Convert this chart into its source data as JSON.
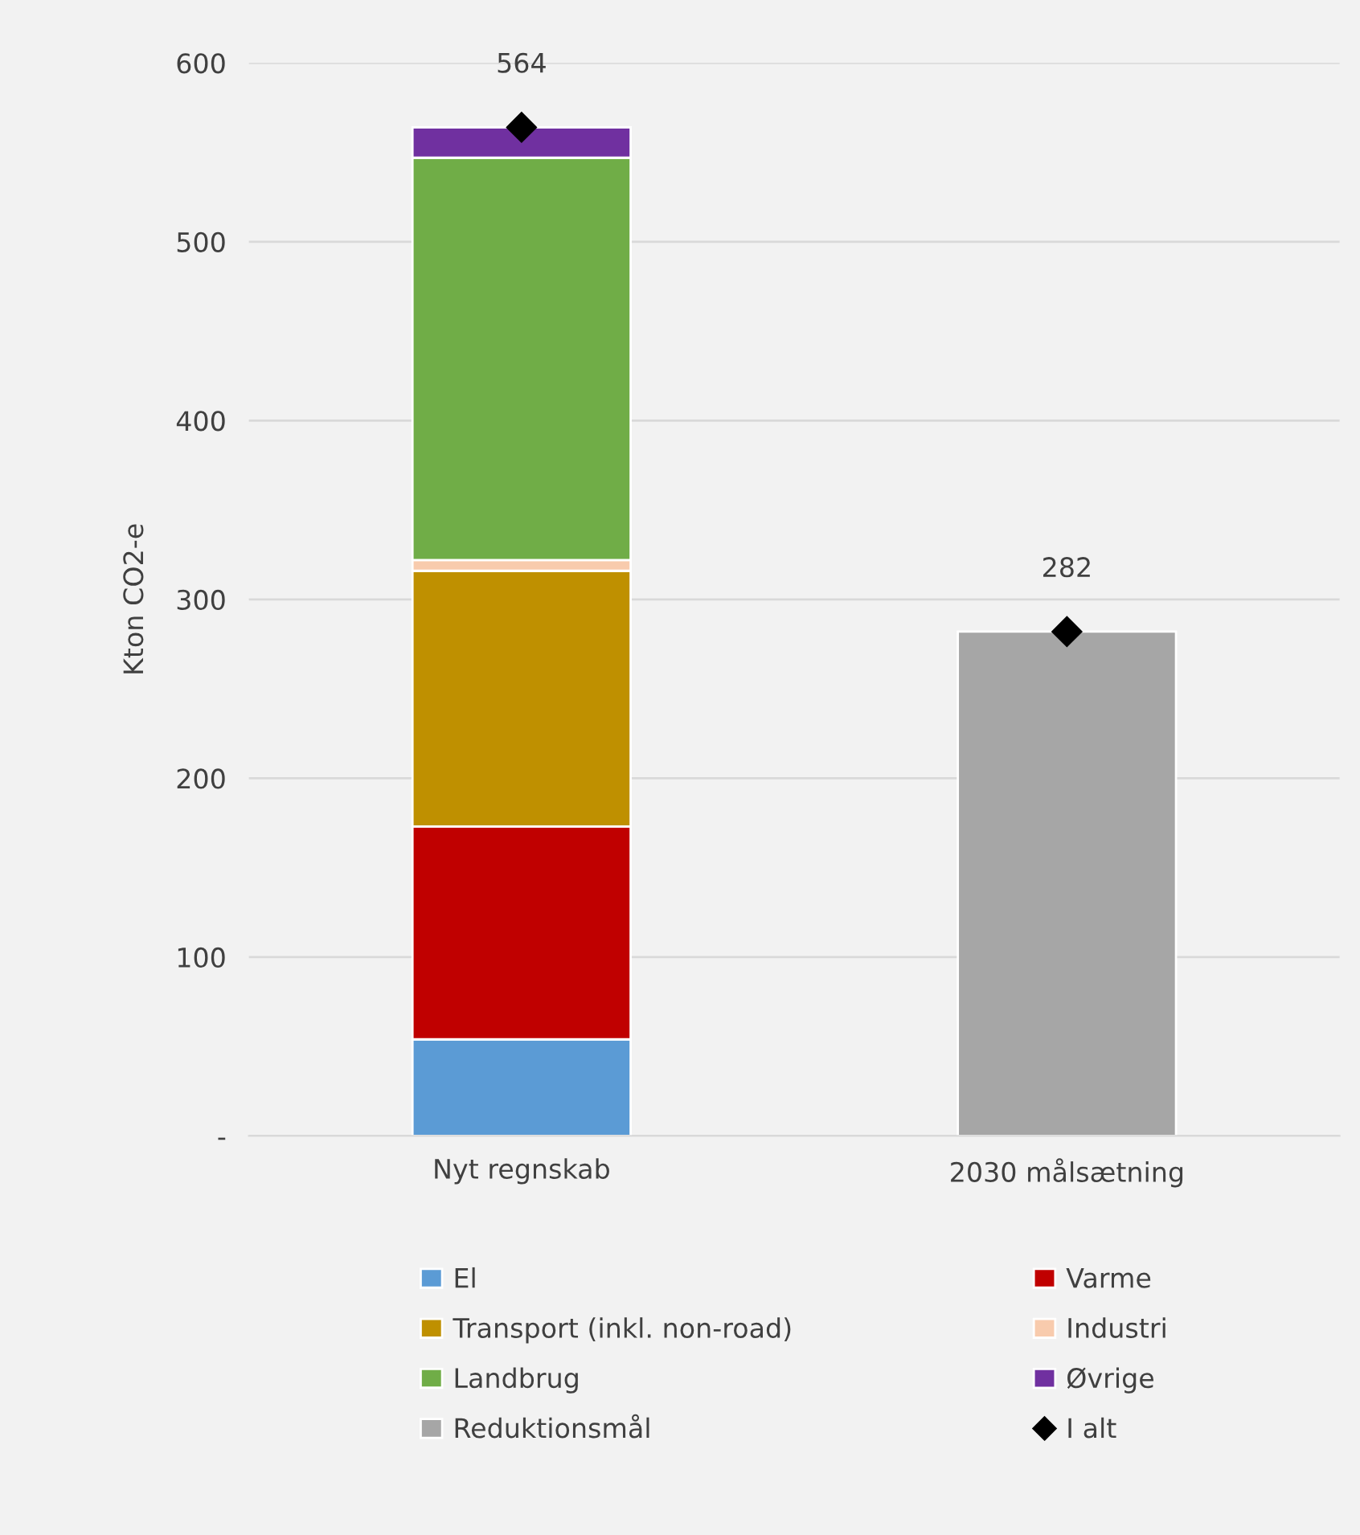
{
  "chart_data": {
    "type": "bar",
    "stacked": true,
    "ylabel": "Kton CO2-e",
    "categories": [
      "Nyt regnskab",
      "2030 målsætning"
    ],
    "series": [
      {
        "name": "El",
        "color": "#5b9bd5",
        "values": [
          54,
          null
        ]
      },
      {
        "name": "Varme",
        "color": "#c00000",
        "values": [
          119,
          null
        ]
      },
      {
        "name": "Transport (inkl. non-road)",
        "color": "#bf9000",
        "values": [
          143,
          null
        ]
      },
      {
        "name": "Industri",
        "color": "#f8cbad",
        "values": [
          6,
          null
        ]
      },
      {
        "name": "Landbrug",
        "color": "#70ad47",
        "values": [
          225,
          null
        ]
      },
      {
        "name": "Øvrige",
        "color": "#7030a0",
        "values": [
          17,
          null
        ]
      },
      {
        "name": "Reduktionsmål",
        "color": "#a6a6a6",
        "values": [
          null,
          282
        ]
      },
      {
        "name": "I alt",
        "type": "scatter",
        "marker": "diamond",
        "color": "#000000",
        "values": [
          564,
          282
        ],
        "value_labels": [
          "564",
          "282"
        ]
      }
    ],
    "ylim": [
      0,
      600
    ],
    "yticks": [
      {
        "value": 0,
        "label": "-"
      },
      100,
      200,
      300,
      400,
      500,
      600
    ],
    "grid": "y",
    "legend": "bottom"
  }
}
